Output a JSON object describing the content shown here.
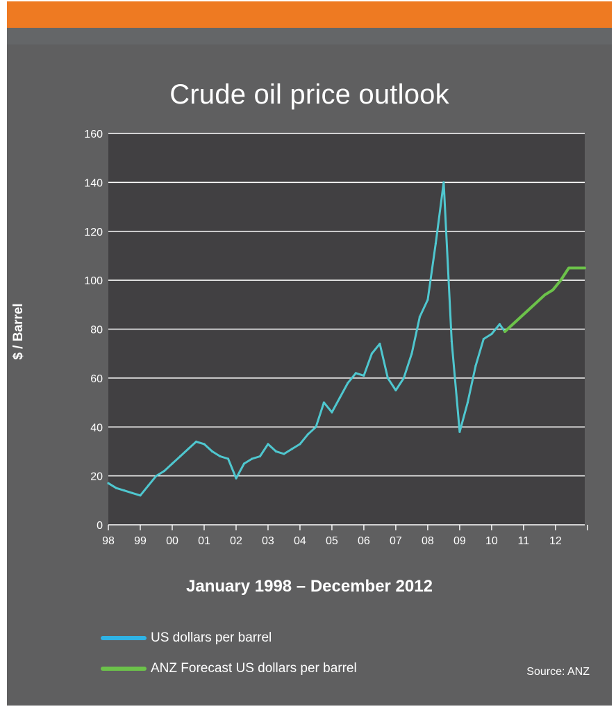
{
  "colors": {
    "orange_bar": "#ee7a22",
    "background": "#5f5f60",
    "plot_background": "#414042",
    "history_line": "#4fc7cf",
    "forecast_line": "#6cc24a",
    "legend_blue": "#2fb3e5",
    "legend_green": "#6cc24a",
    "text": "#ffffff"
  },
  "chart_data": {
    "type": "line",
    "title": "Crude oil price outlook",
    "xlabel": "January 1998 – December 2012",
    "ylabel": "$ / Barrel",
    "ylim": [
      0,
      160
    ],
    "yticks": [
      0,
      20,
      40,
      60,
      80,
      100,
      120,
      140,
      160
    ],
    "xlim": [
      "1998-01",
      "2012-12"
    ],
    "xtick_labels": [
      "98",
      "99",
      "00",
      "01",
      "02",
      "03",
      "04",
      "05",
      "06",
      "07",
      "08",
      "09",
      "10",
      "11",
      "12"
    ],
    "grid": true,
    "legend_position": "bottom",
    "series": [
      {
        "name": "US dollars per barrel",
        "x": [
          "1998-01",
          "1998-04",
          "1998-07",
          "1998-10",
          "1999-01",
          "1999-04",
          "1999-07",
          "1999-10",
          "2000-01",
          "2000-04",
          "2000-07",
          "2000-10",
          "2001-01",
          "2001-04",
          "2001-07",
          "2001-10",
          "2002-01",
          "2002-04",
          "2002-07",
          "2002-10",
          "2003-01",
          "2003-04",
          "2003-07",
          "2003-10",
          "2004-01",
          "2004-04",
          "2004-07",
          "2004-10",
          "2005-01",
          "2005-04",
          "2005-07",
          "2005-10",
          "2006-01",
          "2006-04",
          "2006-07",
          "2006-10",
          "2007-01",
          "2007-04",
          "2007-07",
          "2007-10",
          "2008-01",
          "2008-04",
          "2008-07",
          "2008-10",
          "2009-01",
          "2009-04",
          "2009-07",
          "2009-10",
          "2010-01",
          "2010-04",
          "2010-06"
        ],
        "values": [
          17,
          15,
          14,
          13,
          12,
          16,
          20,
          22,
          25,
          28,
          31,
          34,
          33,
          30,
          28,
          27,
          19,
          25,
          27,
          28,
          33,
          30,
          29,
          31,
          33,
          37,
          40,
          50,
          46,
          52,
          58,
          62,
          61,
          70,
          74,
          60,
          55,
          60,
          70,
          85,
          92,
          115,
          140,
          75,
          38,
          50,
          65,
          76,
          78,
          82,
          79
        ]
      },
      {
        "name": "ANZ Forecast US dollars per barrel",
        "x": [
          "2010-06",
          "2010-12",
          "2011-06",
          "2011-09",
          "2011-12",
          "2012-03",
          "2012-06",
          "2012-12"
        ],
        "values": [
          79,
          85,
          91,
          94,
          96,
          100,
          105,
          105
        ]
      }
    ],
    "source": "Source: ANZ"
  }
}
